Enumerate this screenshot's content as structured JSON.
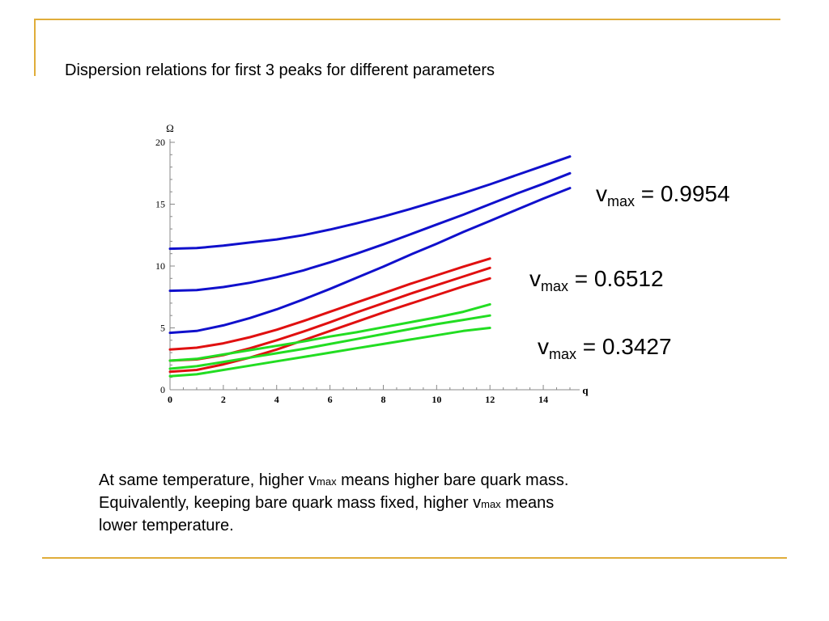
{
  "title": "Dispersion relations for first 3 peaks for different parameters",
  "colors": {
    "accent": "#e0ad3a",
    "blue": "#1010cc",
    "red": "#e01010",
    "green": "#22dd22"
  },
  "labels": [
    {
      "v": "v",
      "sub": "max",
      "value": "= 0.9954"
    },
    {
      "v": "v",
      "sub": "max",
      "value": "= 0.6512"
    },
    {
      "v": "v",
      "sub": "max",
      "value": "= 0.3427"
    }
  ],
  "note": {
    "line1_a": "At same temperature, higher v",
    "line1_sub": "max",
    "line1_b": " means higher bare quark mass.",
    "line2_a": "Equivalently, keeping bare quark mass fixed, higher v",
    "line2_sub": "max",
    "line2_b": " means",
    "line3": "lower temperature."
  },
  "chart_data": {
    "type": "line",
    "title": "",
    "xlabel": "q",
    "ylabel": "Ω",
    "xlim": [
      0,
      15
    ],
    "ylim": [
      0,
      20
    ],
    "xticks": [
      0,
      2,
      4,
      6,
      8,
      10,
      12,
      14
    ],
    "yticks": [
      0,
      5,
      10,
      15,
      20
    ],
    "series": [
      {
        "group": "v_max = 0.9954",
        "color": "#1010cc",
        "x": [
          0,
          1,
          2,
          3,
          4,
          5,
          6,
          7,
          8,
          9,
          10,
          11,
          12,
          13,
          14,
          15
        ],
        "y": [
          11.4,
          11.45,
          11.65,
          11.9,
          12.15,
          12.5,
          12.95,
          13.45,
          14.0,
          14.6,
          15.25,
          15.9,
          16.6,
          17.35,
          18.1,
          18.85
        ]
      },
      {
        "group": "v_max = 0.9954",
        "color": "#1010cc",
        "x": [
          0,
          1,
          2,
          3,
          4,
          5,
          6,
          7,
          8,
          9,
          10,
          11,
          12,
          13,
          14,
          15
        ],
        "y": [
          8.0,
          8.05,
          8.3,
          8.65,
          9.1,
          9.65,
          10.3,
          11.0,
          11.75,
          12.55,
          13.35,
          14.15,
          15.0,
          15.85,
          16.65,
          17.5
        ]
      },
      {
        "group": "v_max = 0.9954",
        "color": "#1010cc",
        "x": [
          0,
          1,
          2,
          3,
          4,
          5,
          6,
          7,
          8,
          9,
          10,
          11,
          12,
          13,
          14,
          15
        ],
        "y": [
          4.6,
          4.75,
          5.2,
          5.8,
          6.5,
          7.3,
          8.15,
          9.05,
          9.95,
          10.9,
          11.8,
          12.75,
          13.65,
          14.55,
          15.45,
          16.3
        ]
      },
      {
        "group": "v_max = 0.6512",
        "color": "#e01010",
        "x": [
          0,
          1,
          2,
          3,
          4,
          5,
          6,
          7,
          8,
          9,
          10,
          11,
          12
        ],
        "y": [
          3.25,
          3.4,
          3.75,
          4.25,
          4.85,
          5.55,
          6.3,
          7.05,
          7.8,
          8.55,
          9.25,
          9.95,
          10.6
        ]
      },
      {
        "group": "v_max = 0.6512",
        "color": "#e01010",
        "x": [
          0,
          1,
          2,
          3,
          4,
          5,
          6,
          7,
          8,
          9,
          10,
          11,
          12
        ],
        "y": [
          2.35,
          2.45,
          2.8,
          3.35,
          4.0,
          4.7,
          5.45,
          6.25,
          7.0,
          7.75,
          8.45,
          9.15,
          9.85
        ]
      },
      {
        "group": "v_max = 0.6512",
        "color": "#e01010",
        "x": [
          0,
          1,
          2,
          3,
          4,
          5,
          6,
          7,
          8,
          9,
          10,
          11,
          12
        ],
        "y": [
          1.45,
          1.6,
          2.05,
          2.6,
          3.25,
          4.0,
          4.75,
          5.5,
          6.25,
          6.95,
          7.65,
          8.35,
          9.0
        ]
      },
      {
        "group": "v_max = 0.3427",
        "color": "#22dd22",
        "x": [
          0,
          1,
          2,
          3,
          4,
          5,
          6,
          7,
          8,
          9,
          10,
          11,
          12
        ],
        "y": [
          2.35,
          2.5,
          2.85,
          3.2,
          3.55,
          3.9,
          4.3,
          4.65,
          5.05,
          5.45,
          5.85,
          6.3,
          6.9
        ]
      },
      {
        "group": "v_max = 0.3427",
        "color": "#22dd22",
        "x": [
          0,
          1,
          2,
          3,
          4,
          5,
          6,
          7,
          8,
          9,
          10,
          11,
          12
        ],
        "y": [
          1.7,
          1.9,
          2.25,
          2.6,
          2.95,
          3.3,
          3.7,
          4.1,
          4.5,
          4.9,
          5.3,
          5.65,
          6.0
        ]
      },
      {
        "group": "v_max = 0.3427",
        "color": "#22dd22",
        "x": [
          0,
          1,
          2,
          3,
          4,
          5,
          6,
          7,
          8,
          9,
          10,
          11,
          12
        ],
        "y": [
          1.1,
          1.25,
          1.6,
          1.95,
          2.3,
          2.65,
          3.0,
          3.35,
          3.7,
          4.05,
          4.4,
          4.75,
          5.0
        ]
      }
    ]
  }
}
